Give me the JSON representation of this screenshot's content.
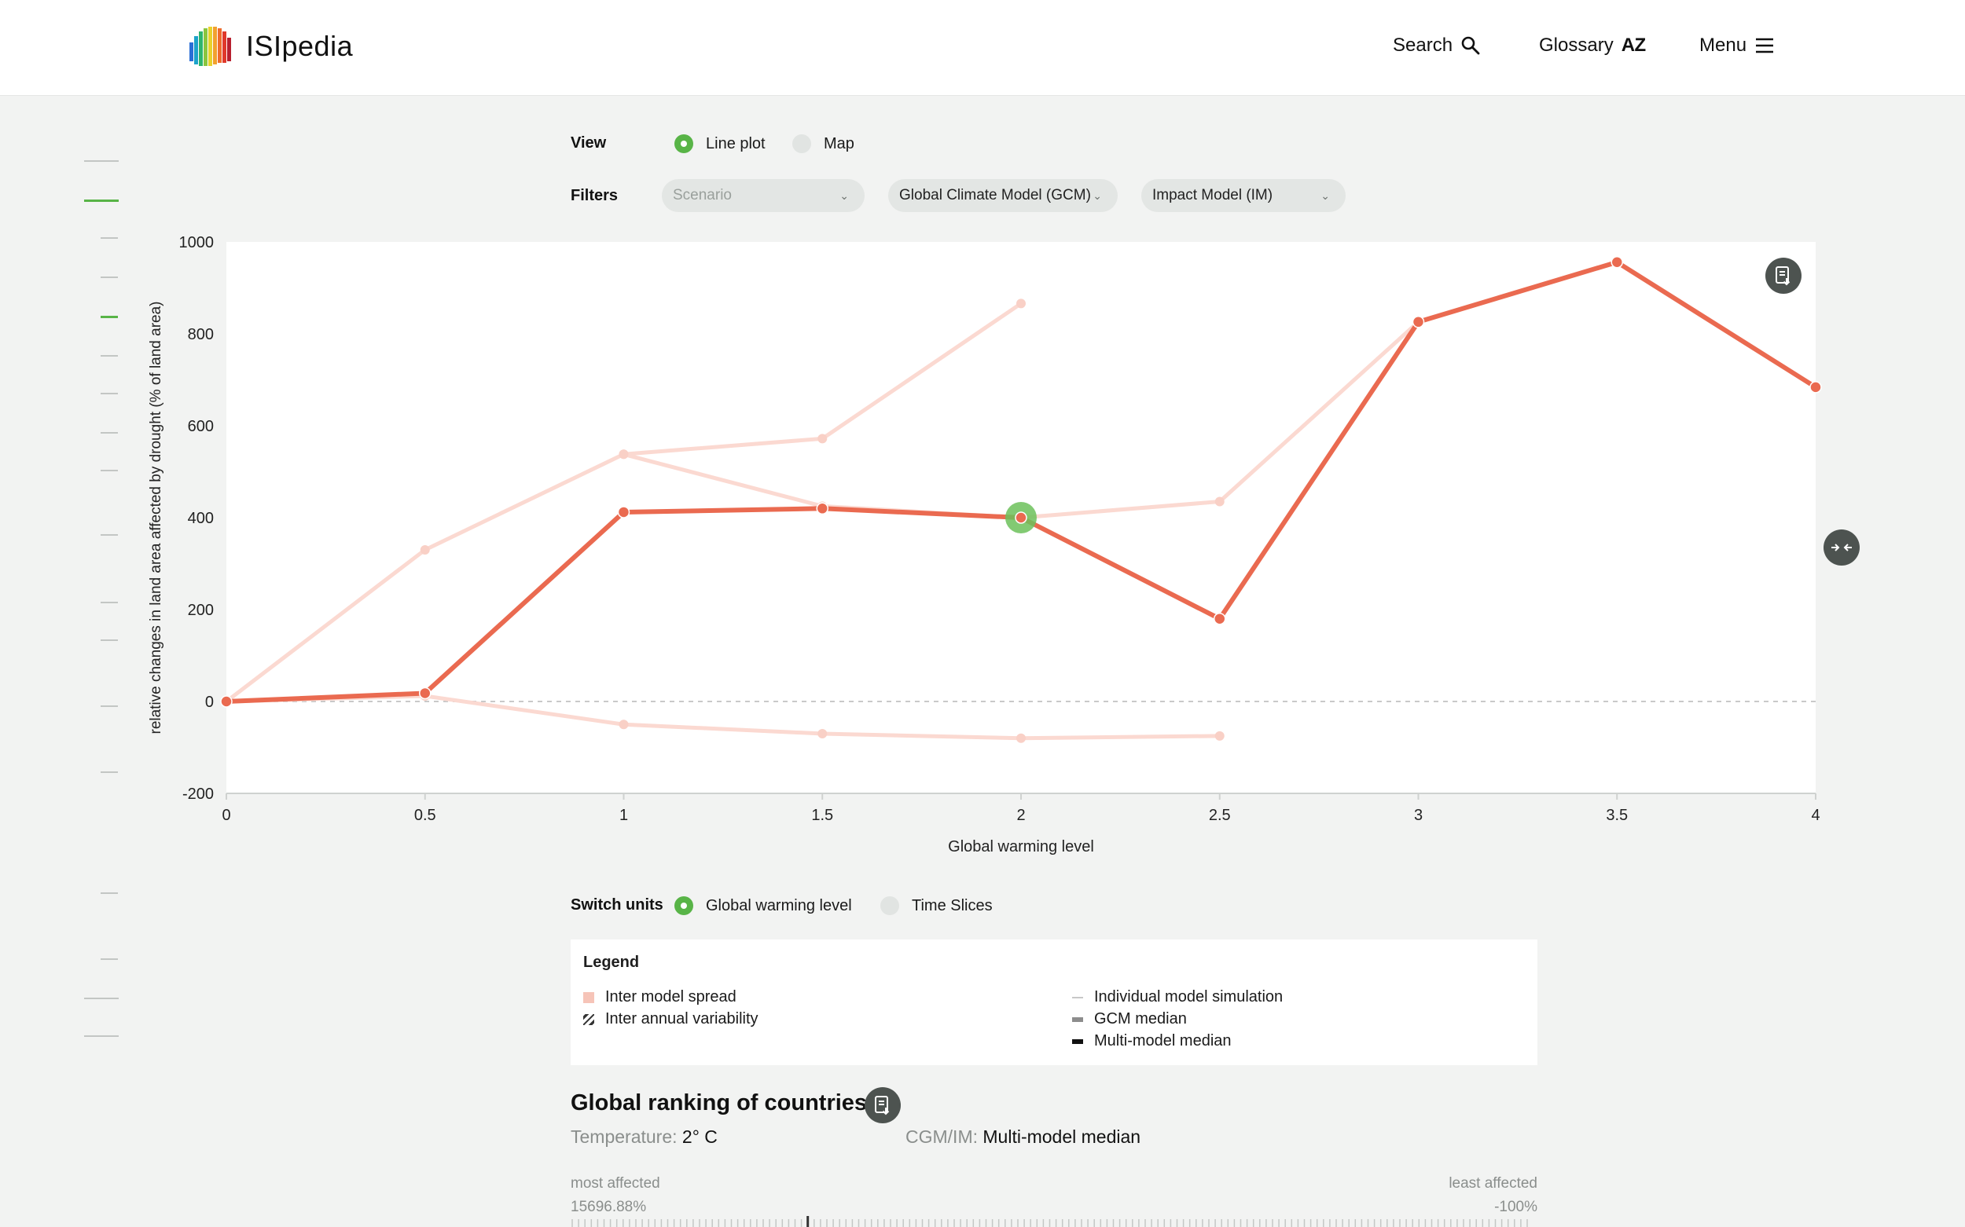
{
  "header": {
    "brand": "ISIpedia",
    "nav": {
      "search": "Search",
      "glossary": "Glossary",
      "glossary_badge": "AZ",
      "menu": "Menu"
    }
  },
  "controls": {
    "view_label": "View",
    "view_options": [
      "Line plot",
      "Map"
    ],
    "view_selected": "Line plot",
    "filters_label": "Filters",
    "filters": {
      "scenario": "Scenario",
      "gcm": "Global Climate Model (GCM)",
      "im": "Impact Model (IM)"
    }
  },
  "chart_data": {
    "type": "line",
    "xlabel": "Global warming level",
    "ylabel": "relative changes in land area affected by drought (% of land area)",
    "xlim": [
      0,
      4
    ],
    "ylim": [
      -200,
      1000
    ],
    "x_ticks": [
      "0",
      "0.5",
      "1",
      "1.5",
      "2",
      "2.5",
      "3",
      "3.5",
      "4"
    ],
    "y_ticks": [
      "1000",
      "800",
      "600",
      "400",
      "200",
      "0",
      "-200"
    ],
    "zero_line": "dashed",
    "highlight_point": {
      "x": 2,
      "y": 400
    },
    "series": [
      {
        "role": "multi-model median",
        "color": "#ea6a50",
        "x": [
          0,
          0.5,
          1,
          1.5,
          2,
          2.5,
          3,
          3.5,
          4
        ],
        "y": [
          0,
          18,
          412,
          420,
          400,
          180,
          826,
          956,
          684
        ]
      },
      {
        "role": "individual model simulation",
        "color": "#fbd9d1",
        "x": [
          0,
          0.5,
          1,
          1.5,
          2
        ],
        "y": [
          0,
          330,
          538,
          572,
          866
        ]
      },
      {
        "role": "individual model simulation",
        "color": "#fbd9d1",
        "x": [
          1,
          1.5,
          2,
          2.5,
          3
        ],
        "y": [
          538,
          425,
          400,
          435,
          826
        ]
      },
      {
        "role": "individual model simulation",
        "color": "#fbd9d1",
        "x": [
          0,
          0.5,
          1,
          1.5,
          2,
          2.5
        ],
        "y": [
          0,
          12,
          -50,
          -70,
          -80,
          -75
        ]
      }
    ]
  },
  "units": {
    "label": "Switch units",
    "options": [
      "Global warming level",
      "Time Slices"
    ],
    "selected": "Global warming level"
  },
  "legend": {
    "title": "Legend",
    "items_left": [
      "Inter model spread",
      "Inter annual variability"
    ],
    "items_right": [
      "Individual model simulation",
      "GCM median",
      "Multi-model median"
    ]
  },
  "ranking": {
    "title": "Global ranking of countries",
    "temperature_label": "Temperature:",
    "temperature_value": "2° C",
    "model_label": "CGM/IM:",
    "model_value": "Multi-model median",
    "most_label": "most affected",
    "most_value": "15696.88%",
    "least_label": "least affected",
    "least_value": "-100%"
  }
}
